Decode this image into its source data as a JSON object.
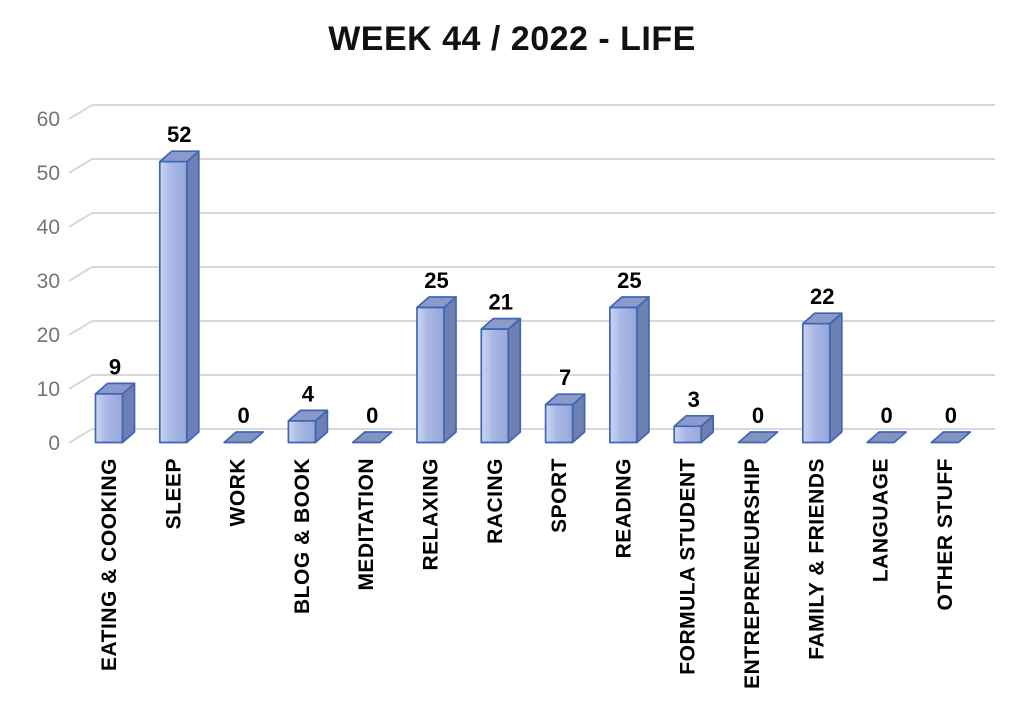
{
  "chart_data": {
    "type": "bar",
    "style": "3d",
    "title": "WEEK 44 / 2022 - LIFE",
    "categories": [
      "EATING & COOKING",
      "SLEEP",
      "WORK",
      "BLOG & BOOK",
      "MEDITATION",
      "RELAXING",
      "RACING",
      "SPORT",
      "READING",
      "FORMULA STUDENT",
      "ENTREPRENEURSHIP",
      "FAMILY & FRIENDS",
      "LANGUAGE",
      "OTHER STUFF"
    ],
    "values": [
      9,
      52,
      0,
      4,
      0,
      25,
      21,
      7,
      25,
      3,
      0,
      22,
      0,
      0
    ],
    "xlabel": "",
    "ylabel": "",
    "ylim": [
      0,
      60
    ],
    "yticks": [
      0,
      10,
      20,
      30,
      40,
      50,
      60
    ],
    "grid": true,
    "legend": "none",
    "data_labels": true,
    "colors": {
      "bar_front_light": "#ccd6f1",
      "bar_front_mid": "#aab8e6",
      "bar_front_dark": "#96a7db",
      "bar_side": "#6e7fb3",
      "bar_top": "#8b9aca",
      "bar_zero_face": "#8292c2",
      "bar_border": "#3e67b1",
      "gridline": "#d8d8d8",
      "ytick_text": "#747474",
      "label_text": "#000000",
      "title_text": "#111111",
      "background": "#ffffff"
    }
  }
}
